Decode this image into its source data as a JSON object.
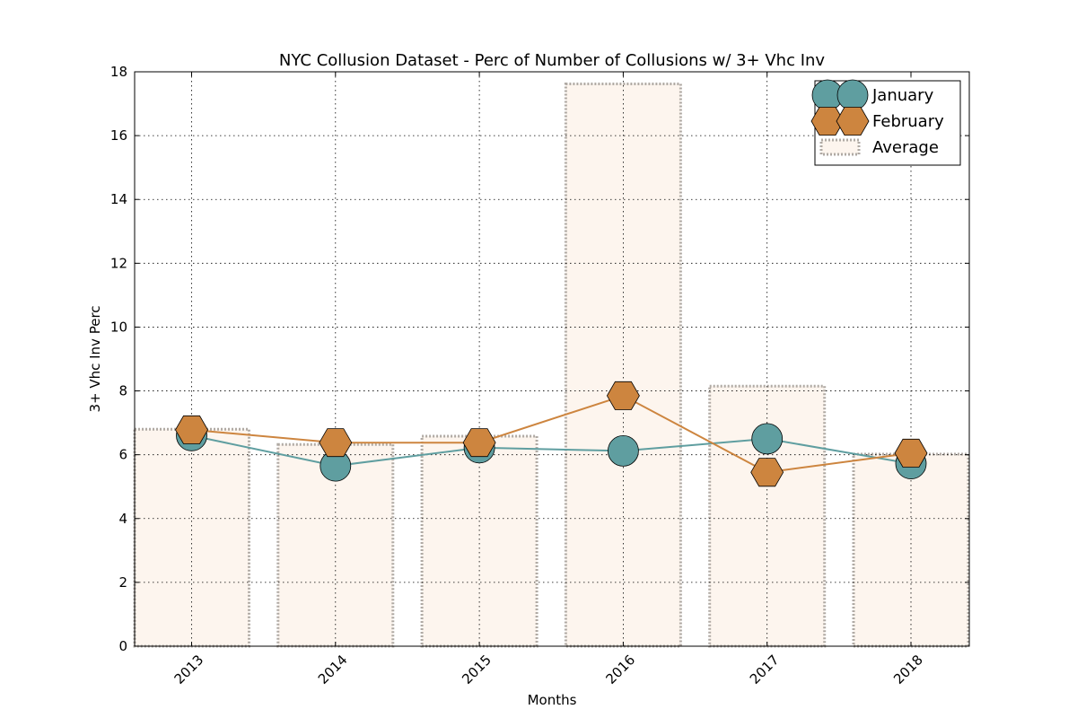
{
  "chart_data": {
    "type": "line",
    "title": "NYC Collusion Dataset - Perc of Number of Collusions w/ 3+ Vhc Inv",
    "xlabel": "Months",
    "ylabel": "3+ Vhc Inv Perc",
    "categories": [
      "2013",
      "2014",
      "2015",
      "2016",
      "2017",
      "2018"
    ],
    "ylim": [
      0,
      18
    ],
    "yticks": [
      0,
      2,
      4,
      6,
      8,
      10,
      12,
      14,
      16,
      18
    ],
    "grid": true,
    "legend_position": "top-right",
    "series": [
      {
        "name": "January",
        "type": "line",
        "marker": "circle",
        "color": "#5f9ea0",
        "values": [
          6.6,
          5.65,
          6.22,
          6.12,
          6.5,
          5.72
        ]
      },
      {
        "name": "February",
        "type": "line",
        "marker": "hexagon",
        "color": "#cd853f",
        "values": [
          6.78,
          6.38,
          6.38,
          7.85,
          5.45,
          6.05
        ]
      },
      {
        "name": "Average",
        "type": "bar",
        "color": "#fdf5ee",
        "edge_color": "#b0aaa4",
        "values": [
          6.8,
          6.32,
          6.58,
          17.62,
          8.15,
          6.02
        ]
      }
    ]
  }
}
